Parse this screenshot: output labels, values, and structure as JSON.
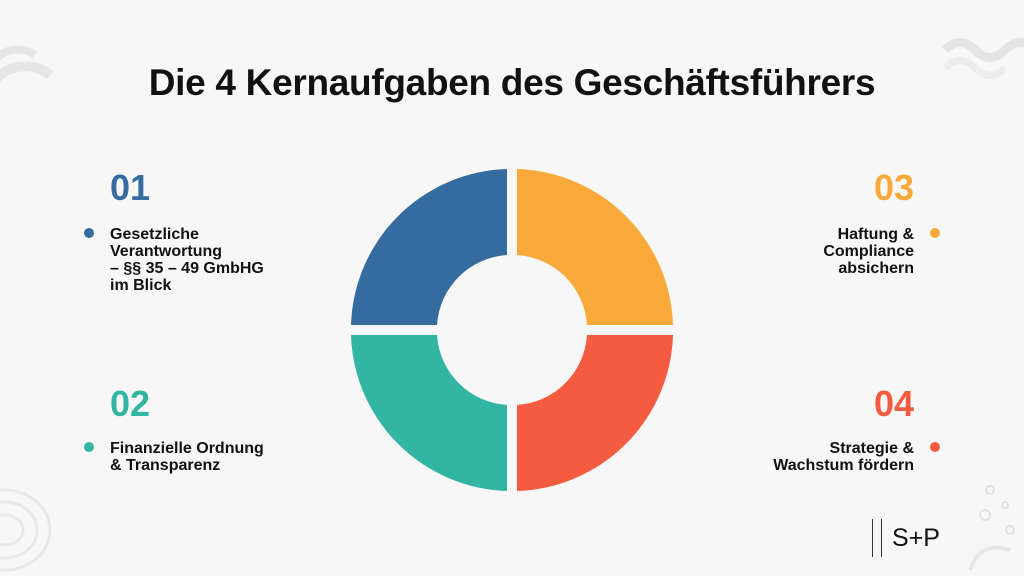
{
  "title": "Die 4 Kernaufgaben des Geschäftsführers",
  "colors": {
    "blue": "#356b9f",
    "orange": "#f8a93a",
    "teal": "#33b5a4",
    "red": "#f55c3f"
  },
  "segments": [
    {
      "number": "01",
      "lines": [
        "Gesetzliche",
        "Verantwortung",
        "– §§ 35 – 49 GmbHG",
        "im Blick"
      ],
      "color": "#356b9f"
    },
    {
      "number": "02",
      "lines": [
        "Finanzielle Ordnung",
        "& Transparenz"
      ],
      "color": "#33b5a4"
    },
    {
      "number": "03",
      "lines": [
        "Haftung &",
        "Compliance",
        "absichern"
      ],
      "color": "#f8a93a"
    },
    {
      "number": "04",
      "lines": [
        "Strategie &",
        "Wachstum fördern"
      ],
      "color": "#f55c3f"
    }
  ],
  "logo": {
    "text": "S+P"
  }
}
